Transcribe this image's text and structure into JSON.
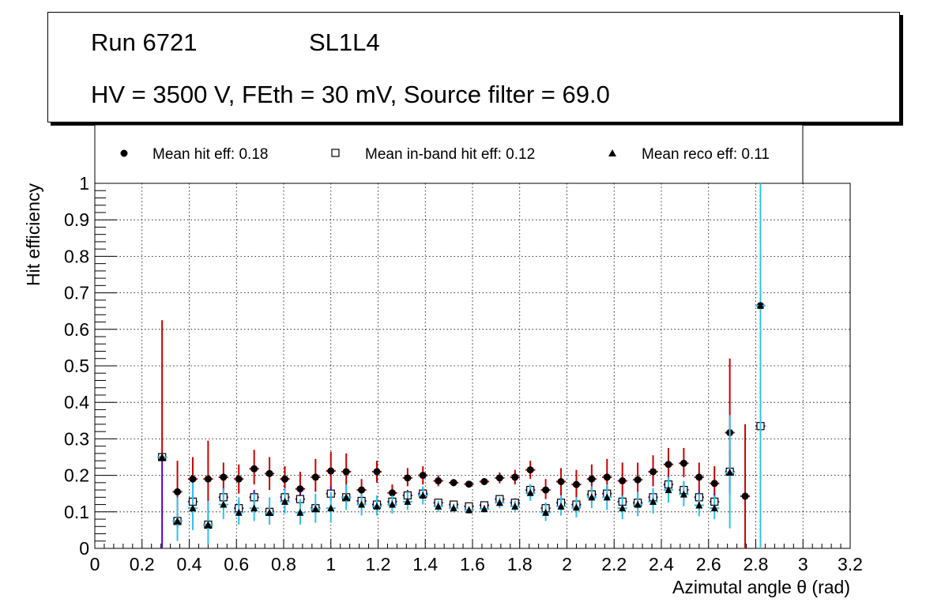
{
  "title": {
    "run": "Run 6721",
    "layer": "SL1L4",
    "conditions": "HV = 3500 V, FEth = 30 mV, Source filter = 69.0"
  },
  "legend": {
    "hit": "Mean hit  eff: 0.18",
    "inband": "Mean in-band hit eff: 0.12",
    "reco": "Mean reco eff: 0.11"
  },
  "colors": {
    "hit_err": "#cc0000",
    "inband_err": "#5a00cc",
    "reco_err": "#2ec0f0",
    "grid": "#000000"
  },
  "chart_data": {
    "type": "scatter",
    "title": "Run 6721 SL1L4",
    "xlabel": "Azimutal angle θ (rad)",
    "ylabel": "Hit efficiency",
    "xlim": [
      0,
      3.2
    ],
    "ylim": [
      0,
      1
    ],
    "grid": true,
    "legend_position": "top",
    "x_ticks": [
      "0",
      "0.2",
      "0.4",
      "0.6",
      "0.8",
      "1",
      "1.2",
      "1.4",
      "1.6",
      "1.8",
      "2",
      "2.2",
      "2.4",
      "2.6",
      "2.8",
      "3",
      "3.2"
    ],
    "y_ticks": [
      "0",
      "0.1",
      "0.2",
      "0.3",
      "0.4",
      "0.5",
      "0.6",
      "0.7",
      "0.8",
      "0.9",
      "1"
    ],
    "x_halfwidth": 0.0205,
    "series": [
      {
        "name": "Mean hit  eff: 0.18",
        "marker": "circle",
        "points": [
          {
            "x": 0.285,
            "y": 0.25,
            "lo": 0.25,
            "hi": 0.625
          },
          {
            "x": 0.35,
            "y": 0.155,
            "lo": 0.085,
            "hi": 0.24
          },
          {
            "x": 0.415,
            "y": 0.19,
            "lo": 0.14,
            "hi": 0.25
          },
          {
            "x": 0.48,
            "y": 0.19,
            "lo": 0.065,
            "hi": 0.295
          },
          {
            "x": 0.545,
            "y": 0.195,
            "lo": 0.16,
            "hi": 0.235
          },
          {
            "x": 0.61,
            "y": 0.19,
            "lo": 0.15,
            "hi": 0.23
          },
          {
            "x": 0.675,
            "y": 0.218,
            "lo": 0.175,
            "hi": 0.27
          },
          {
            "x": 0.74,
            "y": 0.205,
            "lo": 0.16,
            "hi": 0.25
          },
          {
            "x": 0.805,
            "y": 0.19,
            "lo": 0.155,
            "hi": 0.225
          },
          {
            "x": 0.87,
            "y": 0.163,
            "lo": 0.12,
            "hi": 0.21
          },
          {
            "x": 0.935,
            "y": 0.195,
            "lo": 0.155,
            "hi": 0.245
          },
          {
            "x": 1.0,
            "y": 0.212,
            "lo": 0.165,
            "hi": 0.265
          },
          {
            "x": 1.065,
            "y": 0.21,
            "lo": 0.16,
            "hi": 0.26
          },
          {
            "x": 1.13,
            "y": 0.16,
            "lo": 0.14,
            "hi": 0.19
          },
          {
            "x": 1.195,
            "y": 0.21,
            "lo": 0.18,
            "hi": 0.24
          },
          {
            "x": 1.26,
            "y": 0.152,
            "lo": 0.13,
            "hi": 0.175
          },
          {
            "x": 1.325,
            "y": 0.193,
            "lo": 0.17,
            "hi": 0.22
          },
          {
            "x": 1.39,
            "y": 0.2,
            "lo": 0.175,
            "hi": 0.225
          },
          {
            "x": 1.455,
            "y": 0.185,
            "lo": 0.17,
            "hi": 0.2
          },
          {
            "x": 1.52,
            "y": 0.18,
            "lo": 0.17,
            "hi": 0.19
          },
          {
            "x": 1.585,
            "y": 0.176,
            "lo": 0.168,
            "hi": 0.185
          },
          {
            "x": 1.65,
            "y": 0.183,
            "lo": 0.174,
            "hi": 0.192
          },
          {
            "x": 1.715,
            "y": 0.193,
            "lo": 0.178,
            "hi": 0.208
          },
          {
            "x": 1.78,
            "y": 0.195,
            "lo": 0.175,
            "hi": 0.215
          },
          {
            "x": 1.845,
            "y": 0.215,
            "lo": 0.19,
            "hi": 0.24
          },
          {
            "x": 1.91,
            "y": 0.16,
            "lo": 0.135,
            "hi": 0.19
          },
          {
            "x": 1.975,
            "y": 0.183,
            "lo": 0.145,
            "hi": 0.22
          },
          {
            "x": 2.04,
            "y": 0.175,
            "lo": 0.14,
            "hi": 0.215
          },
          {
            "x": 2.105,
            "y": 0.19,
            "lo": 0.15,
            "hi": 0.23
          },
          {
            "x": 2.17,
            "y": 0.195,
            "lo": 0.15,
            "hi": 0.245
          },
          {
            "x": 2.235,
            "y": 0.185,
            "lo": 0.14,
            "hi": 0.235
          },
          {
            "x": 2.3,
            "y": 0.188,
            "lo": 0.145,
            "hi": 0.235
          },
          {
            "x": 2.365,
            "y": 0.21,
            "lo": 0.17,
            "hi": 0.255
          },
          {
            "x": 2.43,
            "y": 0.23,
            "lo": 0.19,
            "hi": 0.275
          },
          {
            "x": 2.495,
            "y": 0.233,
            "lo": 0.195,
            "hi": 0.275
          },
          {
            "x": 2.56,
            "y": 0.195,
            "lo": 0.16,
            "hi": 0.235
          },
          {
            "x": 2.625,
            "y": 0.178,
            "lo": 0.13,
            "hi": 0.225
          },
          {
            "x": 2.69,
            "y": 0.317,
            "lo": 0.2,
            "hi": 0.52
          },
          {
            "x": 2.755,
            "y": 0.143,
            "lo": 0.0,
            "hi": 0.34
          },
          {
            "x": 2.82,
            "y": 0.665,
            "lo": 0.665,
            "hi": 0.665
          }
        ]
      },
      {
        "name": "Mean in-band hit eff: 0.12",
        "marker": "open-square",
        "points": [
          {
            "x": 0.285,
            "y": 0.25,
            "lo": 0.0,
            "hi": 0.25
          },
          {
            "x": 0.35,
            "y": 0.075,
            "lo": 0.055,
            "hi": 0.095
          },
          {
            "x": 0.415,
            "y": 0.128,
            "lo": 0.1,
            "hi": 0.16
          },
          {
            "x": 0.48,
            "y": 0.065,
            "lo": 0.05,
            "hi": 0.08
          },
          {
            "x": 0.545,
            "y": 0.14,
            "lo": 0.12,
            "hi": 0.165
          },
          {
            "x": 0.61,
            "y": 0.11,
            "lo": 0.09,
            "hi": 0.13
          },
          {
            "x": 0.675,
            "y": 0.14,
            "lo": 0.12,
            "hi": 0.16
          },
          {
            "x": 0.74,
            "y": 0.1,
            "lo": 0.085,
            "hi": 0.115
          },
          {
            "x": 0.805,
            "y": 0.14,
            "lo": 0.12,
            "hi": 0.16
          },
          {
            "x": 0.87,
            "y": 0.135,
            "lo": 0.115,
            "hi": 0.155
          },
          {
            "x": 0.935,
            "y": 0.11,
            "lo": 0.095,
            "hi": 0.125
          },
          {
            "x": 1.0,
            "y": 0.15,
            "lo": 0.13,
            "hi": 0.17
          },
          {
            "x": 1.065,
            "y": 0.14,
            "lo": 0.125,
            "hi": 0.155
          },
          {
            "x": 1.13,
            "y": 0.13,
            "lo": 0.115,
            "hi": 0.145
          },
          {
            "x": 1.195,
            "y": 0.12,
            "lo": 0.105,
            "hi": 0.135
          },
          {
            "x": 1.26,
            "y": 0.128,
            "lo": 0.115,
            "hi": 0.142
          },
          {
            "x": 1.325,
            "y": 0.145,
            "lo": 0.13,
            "hi": 0.16
          },
          {
            "x": 1.39,
            "y": 0.15,
            "lo": 0.135,
            "hi": 0.165
          },
          {
            "x": 1.455,
            "y": 0.125,
            "lo": 0.115,
            "hi": 0.135
          },
          {
            "x": 1.52,
            "y": 0.12,
            "lo": 0.11,
            "hi": 0.13
          },
          {
            "x": 1.585,
            "y": 0.115,
            "lo": 0.108,
            "hi": 0.123
          },
          {
            "x": 1.65,
            "y": 0.118,
            "lo": 0.11,
            "hi": 0.126
          },
          {
            "x": 1.715,
            "y": 0.135,
            "lo": 0.125,
            "hi": 0.145
          },
          {
            "x": 1.78,
            "y": 0.125,
            "lo": 0.113,
            "hi": 0.137
          },
          {
            "x": 1.845,
            "y": 0.16,
            "lo": 0.145,
            "hi": 0.175
          },
          {
            "x": 1.91,
            "y": 0.11,
            "lo": 0.095,
            "hi": 0.125
          },
          {
            "x": 1.975,
            "y": 0.125,
            "lo": 0.11,
            "hi": 0.14
          },
          {
            "x": 2.04,
            "y": 0.12,
            "lo": 0.105,
            "hi": 0.135
          },
          {
            "x": 2.105,
            "y": 0.148,
            "lo": 0.13,
            "hi": 0.166
          },
          {
            "x": 2.17,
            "y": 0.15,
            "lo": 0.13,
            "hi": 0.17
          },
          {
            "x": 2.235,
            "y": 0.128,
            "lo": 0.11,
            "hi": 0.146
          },
          {
            "x": 2.3,
            "y": 0.125,
            "lo": 0.108,
            "hi": 0.142
          },
          {
            "x": 2.365,
            "y": 0.14,
            "lo": 0.12,
            "hi": 0.16
          },
          {
            "x": 2.43,
            "y": 0.175,
            "lo": 0.155,
            "hi": 0.195
          },
          {
            "x": 2.495,
            "y": 0.16,
            "lo": 0.14,
            "hi": 0.18
          },
          {
            "x": 2.56,
            "y": 0.14,
            "lo": 0.12,
            "hi": 0.16
          },
          {
            "x": 2.625,
            "y": 0.128,
            "lo": 0.105,
            "hi": 0.15
          },
          {
            "x": 2.69,
            "y": 0.21,
            "lo": 0.15,
            "hi": 0.27
          },
          {
            "x": 2.82,
            "y": 0.335,
            "lo": 0.335,
            "hi": 0.335
          }
        ]
      },
      {
        "name": "Mean reco eff: 0.11",
        "marker": "triangle",
        "points": [
          {
            "x": 0.285,
            "y": 0.25,
            "lo": 0.25,
            "hi": 0.25
          },
          {
            "x": 0.35,
            "y": 0.075,
            "lo": 0.02,
            "hi": 0.14
          },
          {
            "x": 0.415,
            "y": 0.11,
            "lo": 0.05,
            "hi": 0.18
          },
          {
            "x": 0.48,
            "y": 0.065,
            "lo": 0.01,
            "hi": 0.13
          },
          {
            "x": 0.545,
            "y": 0.12,
            "lo": 0.08,
            "hi": 0.165
          },
          {
            "x": 0.61,
            "y": 0.098,
            "lo": 0.065,
            "hi": 0.14
          },
          {
            "x": 0.675,
            "y": 0.11,
            "lo": 0.075,
            "hi": 0.15
          },
          {
            "x": 0.74,
            "y": 0.098,
            "lo": 0.065,
            "hi": 0.14
          },
          {
            "x": 0.805,
            "y": 0.128,
            "lo": 0.095,
            "hi": 0.165
          },
          {
            "x": 0.87,
            "y": 0.098,
            "lo": 0.065,
            "hi": 0.135
          },
          {
            "x": 0.935,
            "y": 0.108,
            "lo": 0.07,
            "hi": 0.15
          },
          {
            "x": 1.0,
            "y": 0.11,
            "lo": 0.07,
            "hi": 0.155
          },
          {
            "x": 1.065,
            "y": 0.14,
            "lo": 0.105,
            "hi": 0.175
          },
          {
            "x": 1.13,
            "y": 0.12,
            "lo": 0.09,
            "hi": 0.15
          },
          {
            "x": 1.195,
            "y": 0.115,
            "lo": 0.09,
            "hi": 0.145
          },
          {
            "x": 1.26,
            "y": 0.12,
            "lo": 0.095,
            "hi": 0.145
          },
          {
            "x": 1.325,
            "y": 0.128,
            "lo": 0.105,
            "hi": 0.155
          },
          {
            "x": 1.39,
            "y": 0.145,
            "lo": 0.12,
            "hi": 0.17
          },
          {
            "x": 1.455,
            "y": 0.115,
            "lo": 0.1,
            "hi": 0.13
          },
          {
            "x": 1.52,
            "y": 0.11,
            "lo": 0.098,
            "hi": 0.122
          },
          {
            "x": 1.585,
            "y": 0.105,
            "lo": 0.095,
            "hi": 0.115
          },
          {
            "x": 1.65,
            "y": 0.108,
            "lo": 0.098,
            "hi": 0.118
          },
          {
            "x": 1.715,
            "y": 0.125,
            "lo": 0.11,
            "hi": 0.14
          },
          {
            "x": 1.78,
            "y": 0.115,
            "lo": 0.1,
            "hi": 0.13
          },
          {
            "x": 1.845,
            "y": 0.152,
            "lo": 0.13,
            "hi": 0.175
          },
          {
            "x": 1.91,
            "y": 0.098,
            "lo": 0.075,
            "hi": 0.125
          },
          {
            "x": 1.975,
            "y": 0.115,
            "lo": 0.09,
            "hi": 0.145
          },
          {
            "x": 2.04,
            "y": 0.112,
            "lo": 0.085,
            "hi": 0.14
          },
          {
            "x": 2.105,
            "y": 0.14,
            "lo": 0.11,
            "hi": 0.17
          },
          {
            "x": 2.17,
            "y": 0.14,
            "lo": 0.105,
            "hi": 0.175
          },
          {
            "x": 2.235,
            "y": 0.11,
            "lo": 0.08,
            "hi": 0.145
          },
          {
            "x": 2.3,
            "y": 0.12,
            "lo": 0.088,
            "hi": 0.155
          },
          {
            "x": 2.365,
            "y": 0.128,
            "lo": 0.095,
            "hi": 0.165
          },
          {
            "x": 2.43,
            "y": 0.16,
            "lo": 0.125,
            "hi": 0.195
          },
          {
            "x": 2.495,
            "y": 0.148,
            "lo": 0.115,
            "hi": 0.185
          },
          {
            "x": 2.56,
            "y": 0.118,
            "lo": 0.088,
            "hi": 0.15
          },
          {
            "x": 2.625,
            "y": 0.11,
            "lo": 0.08,
            "hi": 0.145
          },
          {
            "x": 2.69,
            "y": 0.208,
            "lo": 0.055,
            "hi": 0.365
          },
          {
            "x": 2.82,
            "y": 0.665,
            "lo": 0.0,
            "hi": 1.0
          }
        ]
      }
    ]
  }
}
